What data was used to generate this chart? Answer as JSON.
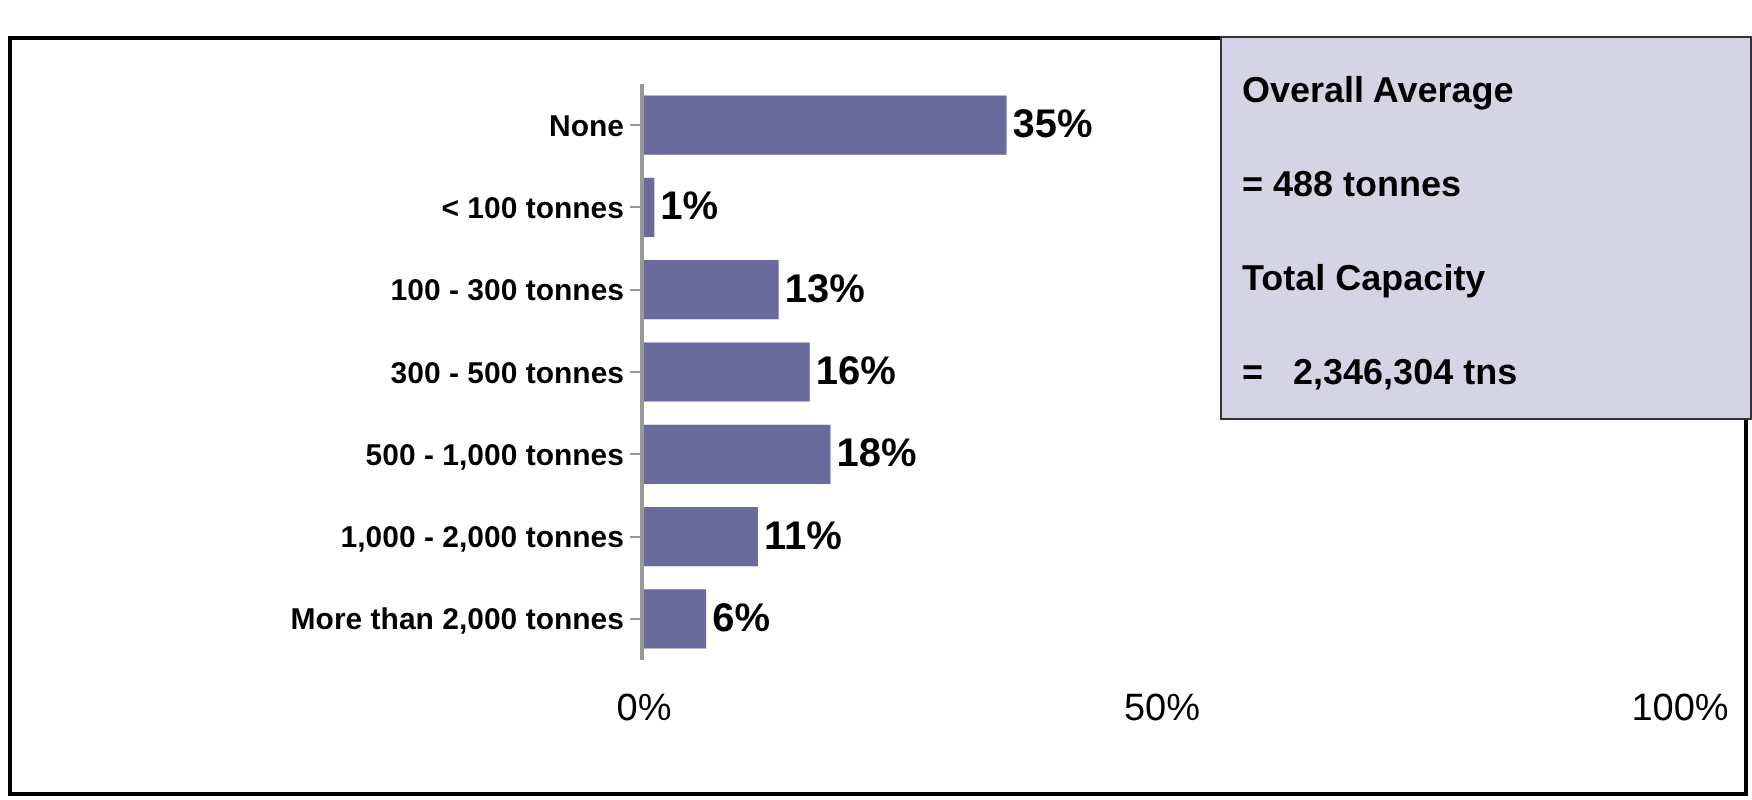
{
  "chart_data": {
    "type": "bar",
    "orientation": "horizontal",
    "categories": [
      "None",
      "< 100 tonnes",
      "100 - 300 tonnes",
      "300 - 500 tonnes",
      "500 - 1,000 tonnes",
      "1,000 - 2,000 tonnes",
      "More than 2,000 tonnes"
    ],
    "values": [
      35,
      1,
      13,
      16,
      18,
      11,
      6
    ],
    "value_labels": [
      "35%",
      "1%",
      "13%",
      "16%",
      "18%",
      "11%",
      "6%"
    ],
    "color": "#6a6a9c",
    "xlim": [
      0,
      100
    ],
    "xticks": [
      {
        "value": 0,
        "label": "0%"
      },
      {
        "value": 50,
        "label": "50%"
      },
      {
        "value": 100,
        "label": "100%"
      }
    ],
    "grid": false,
    "annotations": [
      "Overall Average",
      "= 488 tonnes",
      "Total Capacity",
      "=   2,346,304 tns"
    ]
  }
}
